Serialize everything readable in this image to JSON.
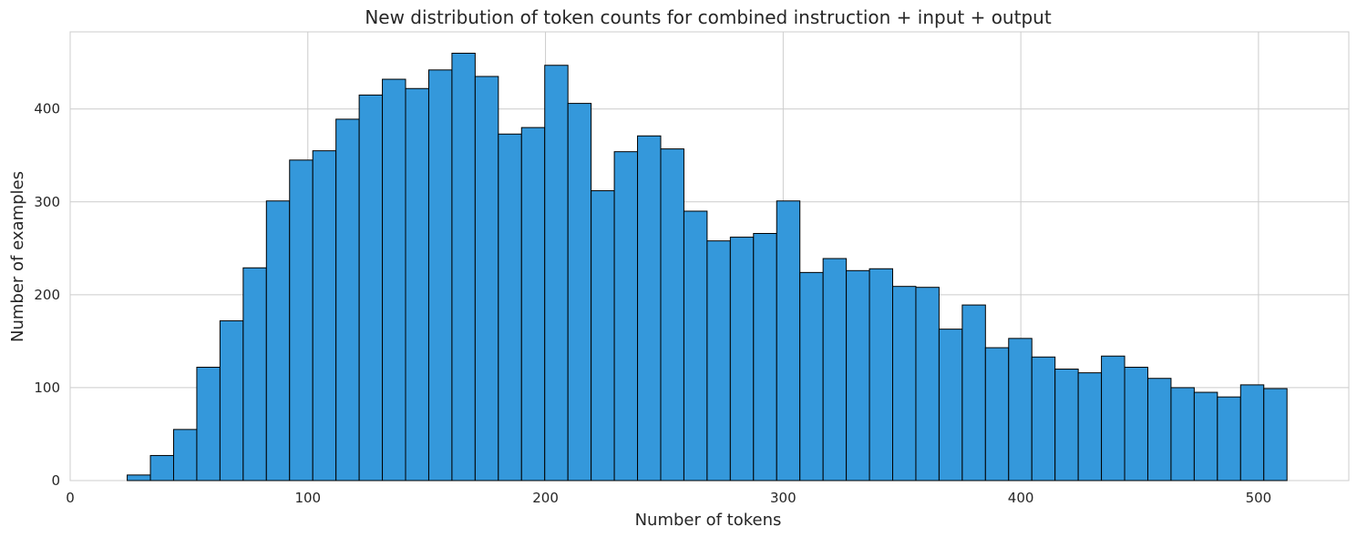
{
  "chart_data": {
    "type": "bar",
    "subtype": "histogram",
    "title": "New distribution of token counts for combined instruction + input + output",
    "xlabel": "Number of tokens",
    "ylabel": "Number of examples",
    "xlim": [
      0,
      538
    ],
    "ylim": [
      0,
      483
    ],
    "xticks": [
      0,
      100,
      200,
      300,
      400,
      500
    ],
    "yticks": [
      0,
      100,
      200,
      300,
      400
    ],
    "grid": true,
    "bar_color": "#3498db",
    "edge_color": "#000000",
    "bin_edges": [
      24,
      33.76,
      43.52,
      53.28,
      63.04,
      72.8,
      82.56,
      92.32,
      102.08,
      111.84,
      121.6,
      131.36,
      141.12,
      150.88,
      160.64,
      170.4,
      180.16,
      189.92,
      199.68,
      209.44,
      219.2,
      228.96,
      238.72,
      248.48,
      258.24,
      268,
      277.76,
      287.52,
      297.28,
      307.04,
      316.8,
      326.56,
      336.32,
      346.08,
      355.84,
      365.6,
      375.36,
      385.12,
      394.88,
      404.64,
      414.4,
      424.16,
      433.92,
      443.68,
      453.44,
      463.2,
      472.96,
      482.72,
      492.48,
      502.24,
      512
    ],
    "values": [
      6,
      27,
      55,
      122,
      172,
      229,
      301,
      345,
      355,
      389,
      415,
      432,
      422,
      442,
      460,
      435,
      373,
      380,
      447,
      406,
      312,
      354,
      371,
      357,
      290,
      258,
      262,
      266,
      301,
      224,
      239,
      226,
      228,
      209,
      208,
      163,
      189,
      143,
      153,
      133,
      120,
      116,
      134,
      122,
      110,
      100,
      95,
      90,
      103,
      99
    ]
  }
}
